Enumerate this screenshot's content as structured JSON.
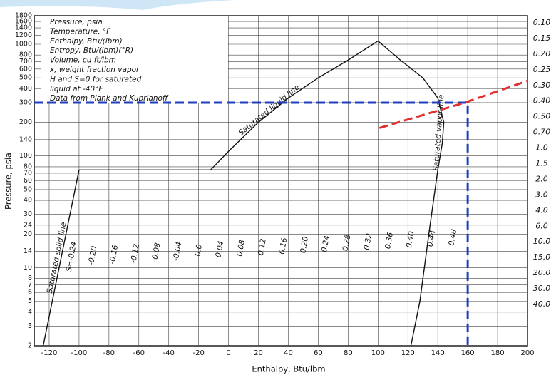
{
  "chart_data": {
    "type": "line",
    "x_label": "Enthalpy, Btu/lbm",
    "y_label": "Pressure, psia",
    "xlim": [
      -130,
      200
    ],
    "xticks": [
      -120,
      -100,
      -80,
      -60,
      -40,
      -20,
      0,
      20,
      40,
      60,
      80,
      100,
      120,
      140,
      160,
      180,
      200
    ],
    "ylim": [
      2,
      1800
    ],
    "log_y": true,
    "yticks": [
      2,
      3,
      4,
      5,
      6,
      7,
      8,
      10,
      14,
      20,
      24,
      30,
      40,
      50,
      60,
      70,
      80,
      100,
      140,
      200,
      300,
      400,
      500,
      600,
      700,
      800,
      1000,
      1200,
      1400,
      1600,
      1800
    ],
    "grid": true,
    "legend_text": [
      "Pressure, psia",
      "Temperature, °F",
      "Enthalpy, Btu/(lbm)",
      "Entropy, Btu/(lbm)(°R)",
      "Volume, cu ft/lbm",
      "x, weight fraction vapor",
      "H and S=0 for saturated",
      "liquid at -40°F",
      "Data from Plank and Kuprianoff"
    ],
    "volume_labels": [
      "0.10",
      "0.15",
      "0.20",
      "0.25",
      "0.30",
      "0.40",
      "0.50",
      "0.70",
      "1.0",
      "1.5",
      "2.0",
      "3.0",
      "4.0",
      "6.0",
      "10.0",
      "15.0",
      "20.0",
      "30.0",
      "40.0"
    ],
    "entropy_labels": [
      "S=-0.24",
      "-0.20",
      "-0.16",
      "-0.12",
      "-0.08",
      "-0.04",
      "0.0",
      "0.04",
      "0.08",
      "0.12",
      "0.16",
      "0.20",
      "0.24",
      "0.28",
      "0.32",
      "0.36",
      "0.40",
      "0.44",
      "0.48"
    ],
    "series": [
      {
        "name": "Saturated solid line",
        "color": "#111111",
        "dash": false,
        "x": [
          -124,
          -100
        ],
        "values": [
          2,
          75
        ]
      },
      {
        "color": "#111111",
        "dash": false,
        "x": [
          -100,
          140
        ],
        "values": [
          75,
          75
        ]
      },
      {
        "name": "Saturated liquid line",
        "color": "#111111",
        "dash": false,
        "x": [
          -12,
          0,
          20,
          40,
          60,
          80,
          100
        ],
        "values": [
          75,
          110,
          200,
          330,
          500,
          720,
          1070
        ]
      },
      {
        "name": "Saturated vapor line",
        "color": "#111111",
        "dash": false,
        "x": [
          122,
          128,
          134,
          140,
          143,
          144,
          140,
          130,
          115,
          100
        ],
        "values": [
          2,
          5,
          20,
          75,
          130,
          200,
          330,
          500,
          720,
          1070
        ]
      },
      {
        "color": "#1f3fbf",
        "dash": true,
        "x": [
          -130,
          160,
          160
        ],
        "values": [
          300,
          300,
          2
        ]
      },
      {
        "color": "#e03030",
        "dash": true,
        "x": [
          101,
          158,
          200
        ],
        "values": [
          178,
          300,
          470
        ]
      }
    ]
  }
}
